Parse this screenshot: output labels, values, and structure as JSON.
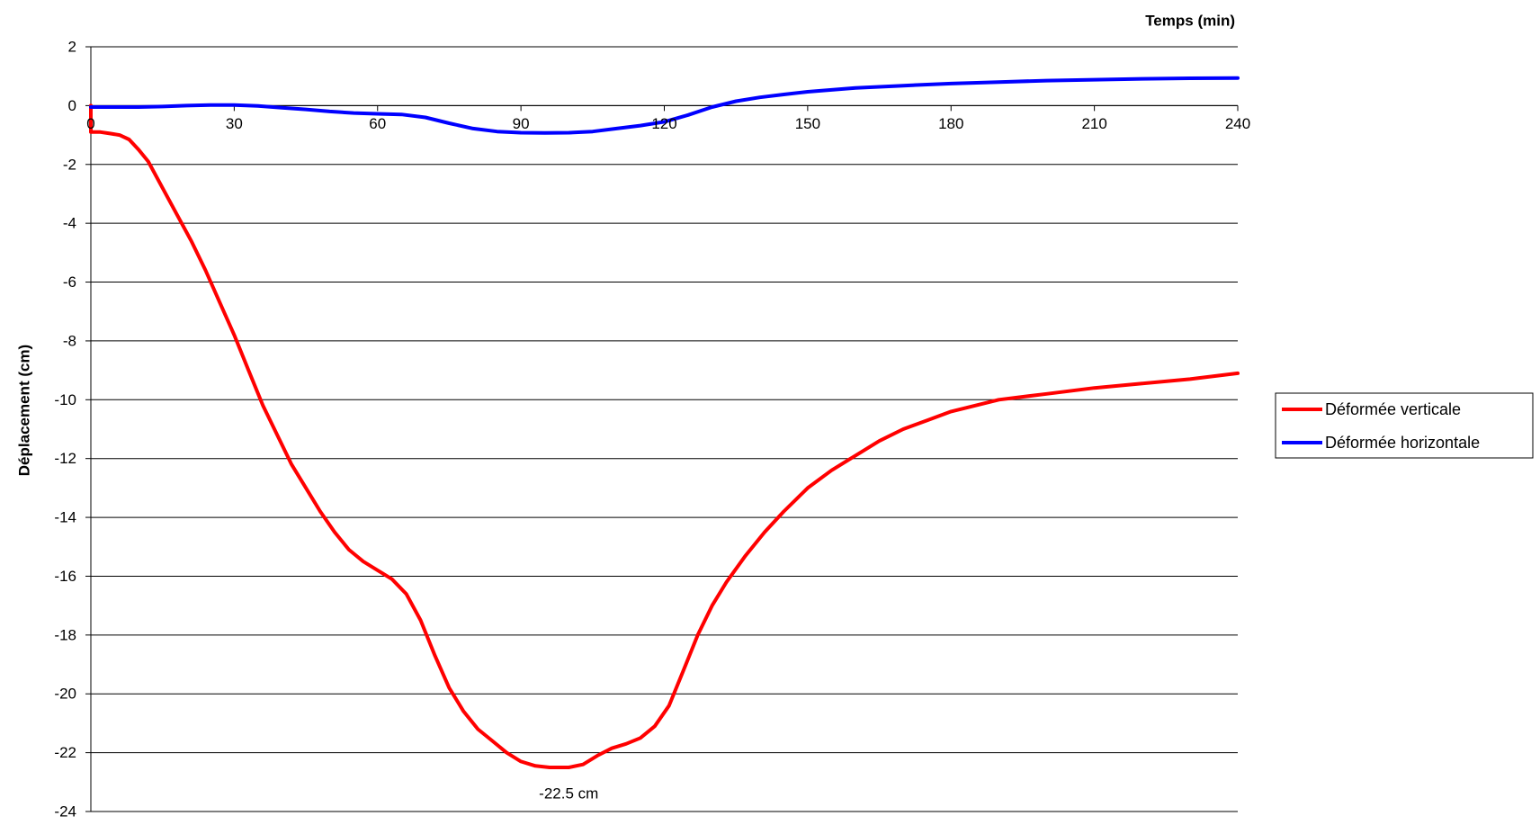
{
  "chart_data": {
    "type": "line",
    "xlabel": "Temps (min)",
    "ylabel": "Déplacement (cm)",
    "xlim": [
      0,
      240
    ],
    "ylim": [
      -24,
      2
    ],
    "x_ticks": [
      0,
      30,
      60,
      90,
      120,
      150,
      180,
      210,
      240
    ],
    "y_ticks": [
      2,
      0,
      -2,
      -4,
      -6,
      -8,
      -10,
      -12,
      -14,
      -16,
      -18,
      -20,
      -22,
      -24
    ],
    "grid": "horizontal",
    "legend_position": "right",
    "annotation": {
      "text": "-22.5 cm",
      "x": 100,
      "y": -22.5
    },
    "series": [
      {
        "name": "Déformée verticale",
        "color": "#ff0000",
        "points": [
          [
            0,
            0
          ],
          [
            0,
            -0.9
          ],
          [
            2,
            -0.9
          ],
          [
            4,
            -0.95
          ],
          [
            6,
            -1.0
          ],
          [
            8,
            -1.15
          ],
          [
            10,
            -1.5
          ],
          [
            12,
            -1.9
          ],
          [
            15,
            -2.8
          ],
          [
            18,
            -3.7
          ],
          [
            21,
            -4.6
          ],
          [
            24,
            -5.6
          ],
          [
            27,
            -6.7
          ],
          [
            30,
            -7.8
          ],
          [
            33,
            -9.0
          ],
          [
            36,
            -10.2
          ],
          [
            39,
            -11.2
          ],
          [
            42,
            -12.2
          ],
          [
            45,
            -13.0
          ],
          [
            48,
            -13.8
          ],
          [
            51,
            -14.5
          ],
          [
            54,
            -15.1
          ],
          [
            57,
            -15.5
          ],
          [
            60,
            -15.8
          ],
          [
            63,
            -16.1
          ],
          [
            66,
            -16.6
          ],
          [
            69,
            -17.5
          ],
          [
            72,
            -18.7
          ],
          [
            75,
            -19.8
          ],
          [
            78,
            -20.6
          ],
          [
            81,
            -21.2
          ],
          [
            84,
            -21.6
          ],
          [
            87,
            -22.0
          ],
          [
            90,
            -22.3
          ],
          [
            93,
            -22.45
          ],
          [
            96,
            -22.5
          ],
          [
            100,
            -22.5
          ],
          [
            103,
            -22.4
          ],
          [
            106,
            -22.1
          ],
          [
            109,
            -21.85
          ],
          [
            112,
            -21.7
          ],
          [
            115,
            -21.5
          ],
          [
            118,
            -21.1
          ],
          [
            121,
            -20.4
          ],
          [
            124,
            -19.2
          ],
          [
            127,
            -18.0
          ],
          [
            130,
            -17.0
          ],
          [
            133,
            -16.2
          ],
          [
            137,
            -15.3
          ],
          [
            141,
            -14.5
          ],
          [
            145,
            -13.8
          ],
          [
            150,
            -13.0
          ],
          [
            155,
            -12.4
          ],
          [
            160,
            -11.9
          ],
          [
            165,
            -11.4
          ],
          [
            170,
            -11.0
          ],
          [
            175,
            -10.7
          ],
          [
            180,
            -10.4
          ],
          [
            190,
            -10.0
          ],
          [
            200,
            -9.8
          ],
          [
            210,
            -9.6
          ],
          [
            220,
            -9.45
          ],
          [
            230,
            -9.3
          ],
          [
            240,
            -9.1
          ]
        ]
      },
      {
        "name": "Déformée horizontale",
        "color": "#0000ff",
        "points": [
          [
            0,
            -0.05
          ],
          [
            5,
            -0.05
          ],
          [
            10,
            -0.05
          ],
          [
            15,
            -0.03
          ],
          [
            20,
            0.0
          ],
          [
            25,
            0.02
          ],
          [
            30,
            0.02
          ],
          [
            35,
            -0.01
          ],
          [
            40,
            -0.07
          ],
          [
            45,
            -0.13
          ],
          [
            50,
            -0.2
          ],
          [
            55,
            -0.25
          ],
          [
            60,
            -0.28
          ],
          [
            65,
            -0.3
          ],
          [
            70,
            -0.4
          ],
          [
            75,
            -0.6
          ],
          [
            80,
            -0.78
          ],
          [
            85,
            -0.88
          ],
          [
            90,
            -0.92
          ],
          [
            95,
            -0.93
          ],
          [
            100,
            -0.92
          ],
          [
            105,
            -0.88
          ],
          [
            110,
            -0.78
          ],
          [
            115,
            -0.68
          ],
          [
            120,
            -0.55
          ],
          [
            125,
            -0.32
          ],
          [
            130,
            -0.05
          ],
          [
            135,
            0.15
          ],
          [
            140,
            0.28
          ],
          [
            145,
            0.38
          ],
          [
            150,
            0.47
          ],
          [
            160,
            0.6
          ],
          [
            170,
            0.68
          ],
          [
            180,
            0.75
          ],
          [
            190,
            0.8
          ],
          [
            200,
            0.85
          ],
          [
            210,
            0.88
          ],
          [
            220,
            0.91
          ],
          [
            230,
            0.93
          ],
          [
            240,
            0.94
          ]
        ]
      }
    ]
  }
}
